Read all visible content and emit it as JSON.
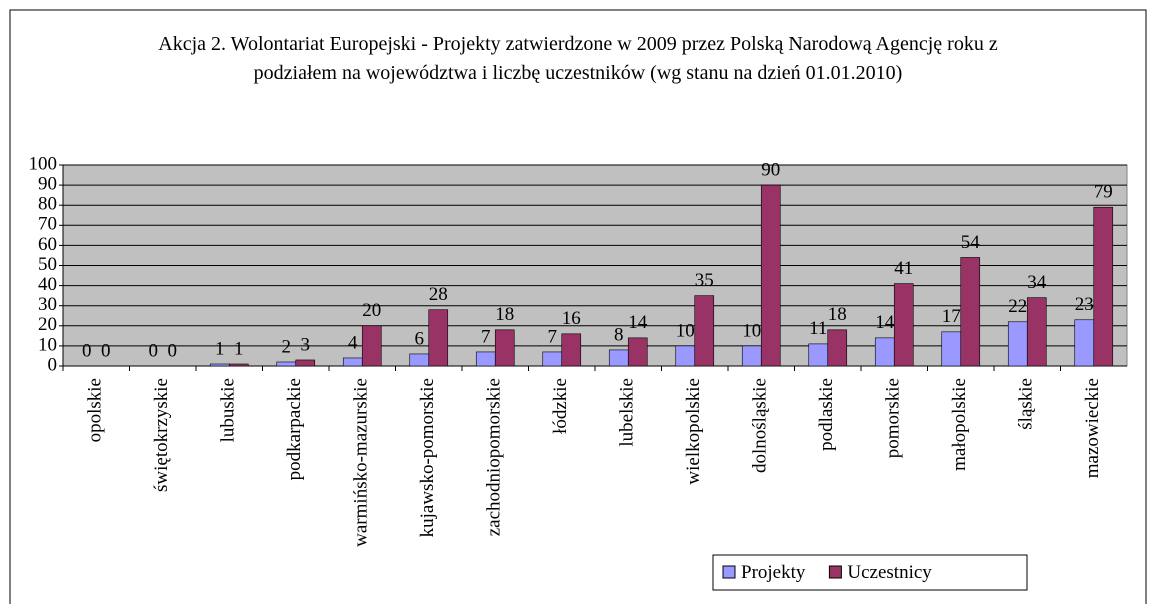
{
  "chart_data": {
    "type": "bar",
    "title": "Akcja 2. Wolontariat Europejski - Projekty zatwierdzone w 2009 przez Polską Narodową Agencję  roku z podziałem na województwa i liczbę uczestników (wg stanu na dzień 01.01.2010)",
    "categories": [
      "opolskie",
      "świętokrzyskie",
      "lubuskie",
      "podkarpackie",
      "warmińsko-mazurskie",
      "kujawsko-pomorskie",
      "zachodniopomorskie",
      "łódzkie",
      "lubelskie",
      "wielkopolskie",
      "dolnośląskie",
      "podlaskie",
      "pomorskie",
      "małopolskie",
      "śląskie",
      "mazowieckie"
    ],
    "series": [
      {
        "name": "Projekty",
        "color": "#9999ff",
        "values": [
          0,
          0,
          1,
          2,
          4,
          6,
          7,
          7,
          8,
          10,
          10,
          11,
          14,
          17,
          22,
          23
        ]
      },
      {
        "name": "Uczestnicy",
        "color": "#993366",
        "values": [
          0,
          0,
          1,
          3,
          20,
          28,
          18,
          16,
          14,
          35,
          90,
          18,
          41,
          54,
          34,
          79
        ]
      }
    ],
    "ylim": [
      0,
      100
    ],
    "yticks": [
      0,
      10,
      20,
      30,
      40,
      50,
      60,
      70,
      80,
      90,
      100
    ],
    "grid": true,
    "legend": "bottom-right",
    "plot_background": "#c0c0c0"
  }
}
